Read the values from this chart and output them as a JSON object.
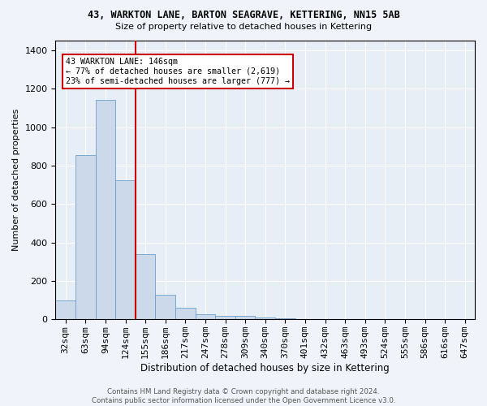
{
  "title": "43, WARKTON LANE, BARTON SEAGRAVE, KETTERING, NN15 5AB",
  "subtitle": "Size of property relative to detached houses in Kettering",
  "xlabel": "Distribution of detached houses by size in Kettering",
  "ylabel": "Number of detached properties",
  "bar_color": "#ccd9ea",
  "bar_edge_color": "#6a9fcb",
  "bg_color": "#e8eef6",
  "grid_color": "#ffffff",
  "categories": [
    "32sqm",
    "63sqm",
    "94sqm",
    "124sqm",
    "155sqm",
    "186sqm",
    "217sqm",
    "247sqm",
    "278sqm",
    "309sqm",
    "340sqm",
    "370sqm",
    "401sqm",
    "432sqm",
    "463sqm",
    "493sqm",
    "524sqm",
    "555sqm",
    "586sqm",
    "616sqm",
    "647sqm"
  ],
  "values": [
    100,
    855,
    1140,
    725,
    340,
    130,
    60,
    28,
    20,
    18,
    10,
    5,
    0,
    0,
    0,
    0,
    0,
    0,
    0,
    0,
    0
  ],
  "vline_x": 3.5,
  "vline_color": "#cc0000",
  "annotation_text": "43 WARKTON LANE: 146sqm\n← 77% of detached houses are smaller (2,619)\n23% of semi-detached houses are larger (777) →",
  "ylim": [
    0,
    1450
  ],
  "yticks": [
    0,
    200,
    400,
    600,
    800,
    1000,
    1200,
    1400
  ],
  "footer": "Contains HM Land Registry data © Crown copyright and database right 2024.\nContains public sector information licensed under the Open Government Licence v3.0."
}
